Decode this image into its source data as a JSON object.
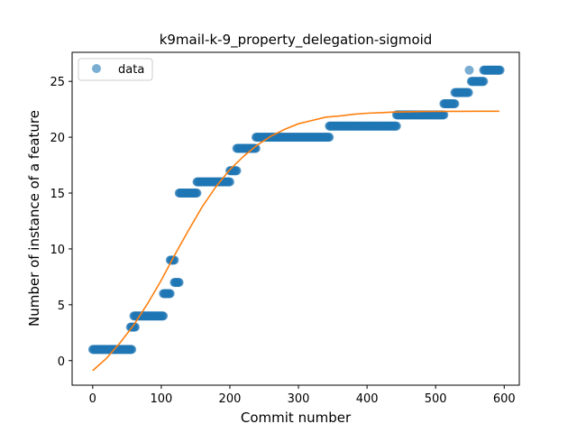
{
  "chart_data": {
    "type": "scatter",
    "title": "k9mail-k-9_property_delegation-sigmoid",
    "xlabel": "Commit number",
    "ylabel": "Number of instance of a feature",
    "xlim": [
      -30,
      622
    ],
    "ylim": [
      -2.2,
      27.6
    ],
    "xticks": [
      0,
      100,
      200,
      300,
      400,
      500,
      600
    ],
    "yticks": [
      0,
      5,
      10,
      15,
      20,
      25
    ],
    "grid": false,
    "legend": {
      "position": "top-left",
      "entries": [
        "data"
      ]
    },
    "colors": {
      "data": "#1f77b4",
      "fit": "#ff7f0e"
    },
    "series": [
      {
        "name": "data",
        "kind": "scatter",
        "segments": [
          {
            "x_start": 0,
            "x_end": 57,
            "y": 1
          },
          {
            "x_start": 55,
            "x_end": 62,
            "y": 3
          },
          {
            "x_start": 60,
            "x_end": 103,
            "y": 4
          },
          {
            "x_start": 103,
            "x_end": 113,
            "y": 6
          },
          {
            "x_start": 113,
            "x_end": 119,
            "y": 9
          },
          {
            "x_start": 119,
            "x_end": 126,
            "y": 7
          },
          {
            "x_start": 126,
            "x_end": 152,
            "y": 15
          },
          {
            "x_start": 152,
            "x_end": 200,
            "y": 16
          },
          {
            "x_start": 200,
            "x_end": 210,
            "y": 17
          },
          {
            "x_start": 210,
            "x_end": 238,
            "y": 19
          },
          {
            "x_start": 238,
            "x_end": 345,
            "y": 20
          },
          {
            "x_start": 345,
            "x_end": 443,
            "y": 21
          },
          {
            "x_start": 443,
            "x_end": 512,
            "y": 22
          },
          {
            "x_start": 512,
            "x_end": 528,
            "y": 23
          },
          {
            "x_start": 528,
            "x_end": 548,
            "y": 24
          },
          {
            "x_start": 549,
            "x_end": 549,
            "y": 26
          },
          {
            "x_start": 552,
            "x_end": 570,
            "y": 25
          },
          {
            "x_start": 570,
            "x_end": 594,
            "y": 26
          }
        ]
      },
      {
        "name": "",
        "kind": "line",
        "x": [
          0,
          20,
          40,
          60,
          80,
          100,
          120,
          140,
          160,
          180,
          200,
          220,
          240,
          260,
          280,
          300,
          320,
          340,
          360,
          380,
          400,
          420,
          440,
          460,
          480,
          500,
          520,
          540,
          560,
          580,
          593
        ],
        "y": [
          -0.9,
          0.2,
          1.6,
          3.2,
          5.1,
          7.2,
          9.5,
          11.7,
          13.8,
          15.6,
          17.1,
          18.3,
          19.3,
          20.1,
          20.7,
          21.2,
          21.5,
          21.8,
          21.9,
          22.05,
          22.15,
          22.2,
          22.25,
          22.28,
          22.3,
          22.31,
          22.32,
          22.32,
          22.33,
          22.33,
          22.33
        ]
      }
    ]
  }
}
